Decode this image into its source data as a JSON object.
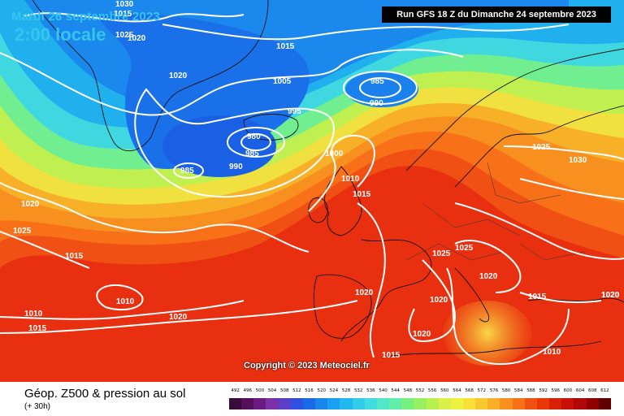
{
  "header": {
    "date_text": "Mardi 26 septembre 2023",
    "hour_text": "2:00 locale",
    "run_text": "Run GFS 18 Z du Dimanche 24 septembre 2023"
  },
  "copyright": "Copyright © 2023 Meteociel.fr",
  "footer": {
    "product_title": "Géop. Z500 & pression au sol",
    "product_subtitle": "(+ 30h)"
  },
  "scale": {
    "labels": [
      "492",
      "496",
      "500",
      "504",
      "508",
      "512",
      "516",
      "520",
      "524",
      "528",
      "532",
      "536",
      "540",
      "544",
      "548",
      "552",
      "556",
      "560",
      "564",
      "568",
      "572",
      "576",
      "580",
      "584",
      "588",
      "592",
      "596",
      "600",
      "604",
      "608",
      "612"
    ],
    "colors": [
      "#3a0a3a",
      "#55105a",
      "#6a1a80",
      "#7a30a8",
      "#5a40c8",
      "#3050e0",
      "#1a6ae8",
      "#1a86ec",
      "#1aa0f0",
      "#20b8ee",
      "#30ccea",
      "#40dce0",
      "#50e8c8",
      "#60eea8",
      "#78f080",
      "#98f060",
      "#b8f050",
      "#d8f048",
      "#f0f040",
      "#f8e038",
      "#f8c830",
      "#f8b028",
      "#f89020",
      "#f87018",
      "#f05010",
      "#e83808",
      "#d82008",
      "#c81008",
      "#b00808",
      "#900000",
      "#600000"
    ]
  },
  "isobars": [
    {
      "label": "1030"
    },
    {
      "label": "1015"
    },
    {
      "label": "1025"
    },
    {
      "label": "1020"
    },
    {
      "label": "1015"
    },
    {
      "label": "1005"
    },
    {
      "label": "1020"
    },
    {
      "label": "985"
    },
    {
      "label": "990"
    },
    {
      "label": "995"
    },
    {
      "label": "980"
    },
    {
      "label": "985"
    },
    {
      "label": "985"
    },
    {
      "label": "990"
    },
    {
      "label": "1000"
    },
    {
      "label": "1010"
    },
    {
      "label": "1015"
    },
    {
      "label": "1020"
    },
    {
      "label": "1025"
    },
    {
      "label": "1015"
    },
    {
      "label": "1010"
    },
    {
      "label": "1010"
    },
    {
      "label": "1015"
    },
    {
      "label": "1020"
    },
    {
      "label": "1020"
    },
    {
      "label": "1025"
    },
    {
      "label": "1030"
    },
    {
      "label": "1025"
    },
    {
      "label": "1025"
    },
    {
      "label": "1020"
    },
    {
      "label": "1020"
    },
    {
      "label": "1020"
    },
    {
      "label": "1015"
    },
    {
      "label": "1015"
    },
    {
      "label": "1010"
    },
    {
      "label": "1020"
    },
    {
      "label": "1020"
    }
  ],
  "colors": {
    "header_text": "#36c5ee",
    "isobar": "#ffffff",
    "coast": "#111111"
  }
}
